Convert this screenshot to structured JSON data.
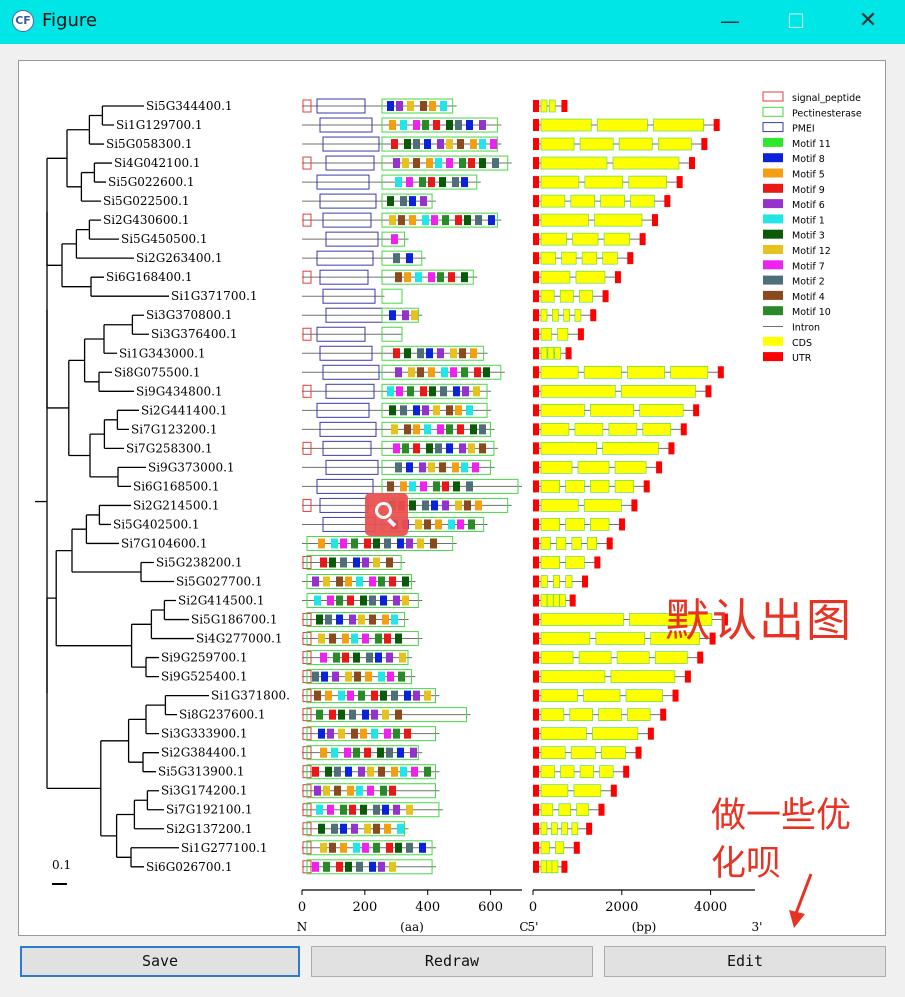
{
  "window": {
    "title": "Figure",
    "app_icon": "CF",
    "controls": {
      "minimize": "—",
      "maximize": "☐",
      "close": "✕"
    }
  },
  "figure": {
    "genes": [
      "Si5G344400.1",
      "Si1G129700.1",
      "Si5G058300.1",
      "Si4G042100.1",
      "Si5G022600.1",
      "Si5G022500.1",
      "Si2G430600.1",
      "Si5G450500.1",
      "Si2G263400.1",
      "Si6G168400.1",
      "Si1G371700.1",
      "Si3G370800.1",
      "Si3G376400.1",
      "Si1G343000.1",
      "Si8G075500.1",
      "Si9G434800.1",
      "Si2G441400.1",
      "Si7G123200.1",
      "Si7G258300.1",
      "Si9G373000.1",
      "Si6G168500.1",
      "Si2G214500.1",
      "Si5G402500.1",
      "Si7G104600.1",
      "Si5G238200.1",
      "Si5G027700.1",
      "Si2G414500.1",
      "Si5G186700.1",
      "Si4G277000.1",
      "Si9G259700.1",
      "Si9G525400.1",
      "Si1G371800.",
      "Si8G237600.1",
      "Si3G333900.1",
      "Si2G384400.1",
      "Si5G313900.1",
      "Si3G174200.1",
      "Si7G192100.1",
      "Si2G137200.1",
      "Si1G277100.1",
      "Si6G026700.1"
    ],
    "protein_length_aa": [
      450,
      580,
      580,
      610,
      520,
      390,
      580,
      310,
      360,
      510,
      240,
      350,
      290,
      540,
      590,
      550,
      550,
      560,
      570,
      560,
      640,
      610,
      540,
      450,
      300,
      330,
      350,
      310,
      350,
      320,
      330,
      400,
      490,
      400,
      350,
      400,
      400,
      410,
      310,
      390,
      390
    ],
    "scale_bar_label": "0.1",
    "protein_axis": {
      "ticks": [
        "0",
        "200",
        "400",
        "600"
      ],
      "unit_label": "(aa)",
      "left_end": "N",
      "right_end": "C"
    },
    "gene_axis": {
      "ticks": [
        "0",
        "2000",
        "4000"
      ],
      "unit_label": "(bp)",
      "left_end": "5'",
      "right_end": "3'"
    },
    "legend": [
      {
        "label": "signal_peptide",
        "color": "#e03c3c",
        "style": "outline"
      },
      {
        "label": "Pectinesterase",
        "color": "#46d846",
        "style": "outline"
      },
      {
        "label": "PMEI",
        "color": "#3a3aa8",
        "style": "outline"
      },
      {
        "label": "Motif 11",
        "color": "#2ee82e",
        "style": "fill"
      },
      {
        "label": "Motif 8",
        "color": "#0a22d8",
        "style": "fill"
      },
      {
        "label": "Motif 5",
        "color": "#f2a012",
        "style": "fill"
      },
      {
        "label": "Motif 9",
        "color": "#e81818",
        "style": "fill"
      },
      {
        "label": "Motif 6",
        "color": "#9632cc",
        "style": "fill"
      },
      {
        "label": "Motif 1",
        "color": "#22e6e6",
        "style": "fill"
      },
      {
        "label": "Motif 3",
        "color": "#0a5a0a",
        "style": "fill"
      },
      {
        "label": "Motif 12",
        "color": "#e6c21e",
        "style": "fill"
      },
      {
        "label": "Motif 7",
        "color": "#ee22ee",
        "style": "fill"
      },
      {
        "label": "Motif 2",
        "color": "#4e6e78",
        "style": "fill"
      },
      {
        "label": "Motif 4",
        "color": "#8a4a1e",
        "style": "fill"
      },
      {
        "label": "Motif 10",
        "color": "#2a8a2a",
        "style": "fill"
      },
      {
        "label": "Intron",
        "color": "#707070",
        "style": "line"
      },
      {
        "label": "CDS",
        "color": "#ffff00",
        "style": "fill"
      },
      {
        "label": "UTR",
        "color": "#ff0000",
        "style": "fill"
      }
    ]
  },
  "overlay": {
    "annotation_1": "默认出图",
    "annotation_2": "做一些优化呗"
  },
  "buttons": {
    "save": "Save",
    "redraw": "Redraw",
    "edit": "Edit"
  }
}
